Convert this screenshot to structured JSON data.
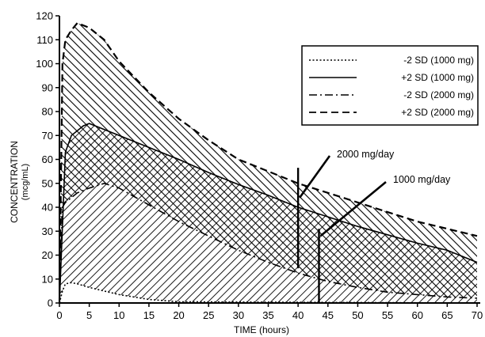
{
  "chart_data": {
    "type": "area",
    "xlabel": "TIME (hours)",
    "ylabel": "CONCENTRATION",
    "ylabel_unit": "(mcg/mL)",
    "xlim": [
      0,
      70
    ],
    "ylim": [
      0,
      120
    ],
    "xticks": [
      0,
      5,
      10,
      15,
      20,
      25,
      30,
      35,
      40,
      45,
      50,
      55,
      60,
      65,
      70
    ],
    "yticks": [
      0,
      10,
      20,
      30,
      40,
      50,
      60,
      70,
      80,
      90,
      100,
      110,
      120
    ],
    "grid": false,
    "legend_position": "top-right",
    "legend": [
      {
        "label": "-2 SD (1000 mg)",
        "style": "dotted"
      },
      {
        "label": "+2 SD (1000 mg)",
        "style": "solid"
      },
      {
        "label": "-2 SD (2000 mg)",
        "style": "dash-dot"
      },
      {
        "label": "+2 SD (2000 mg)",
        "style": "dashed"
      }
    ],
    "series": [
      {
        "name": "-2 SD (1000 mg)",
        "style": "dotted",
        "x": [
          0,
          0.5,
          1,
          2,
          3,
          5,
          7.5,
          10,
          15,
          20,
          70
        ],
        "values": [
          0,
          5,
          8,
          8.5,
          8,
          6.5,
          5,
          3.5,
          1.5,
          0.5,
          0
        ]
      },
      {
        "name": "+2 SD (1000 mg)",
        "style": "solid",
        "x": [
          0,
          1,
          2,
          4,
          5,
          6,
          10,
          15,
          20,
          25,
          30,
          35,
          40,
          45,
          50,
          55,
          60,
          65,
          70
        ],
        "values": [
          0,
          63,
          70,
          74,
          75,
          74,
          70,
          65,
          60,
          54.5,
          49.5,
          45,
          40,
          36,
          32,
          28.5,
          25,
          22,
          17
        ]
      },
      {
        "name": "-2 SD (2000 mg)",
        "style": "dash-dot",
        "x": [
          0,
          0.5,
          1,
          3,
          5,
          7.5,
          10,
          15,
          20,
          25,
          30,
          35,
          40,
          45,
          50,
          55,
          60,
          65,
          70
        ],
        "values": [
          0,
          40,
          42,
          46,
          48,
          50,
          48,
          41,
          34,
          28,
          22,
          17,
          12.5,
          9,
          6.5,
          4.5,
          3.5,
          2.5,
          2
        ]
      },
      {
        "name": "+2 SD (2000 mg)",
        "style": "dashed",
        "x": [
          0,
          0.5,
          1,
          2,
          3,
          5,
          7.5,
          10,
          15,
          20,
          25,
          30,
          35,
          40,
          45,
          50,
          55,
          60,
          65,
          70
        ],
        "values": [
          0,
          100,
          110,
          114,
          117,
          115,
          110,
          101,
          88,
          77,
          68,
          60,
          55,
          50,
          46,
          42,
          38,
          34,
          31,
          28
        ]
      }
    ],
    "annotations": [
      {
        "text": "2000 mg/day",
        "marker_x": 40
      },
      {
        "text": "1000 mg/day",
        "marker_x": 43.5
      }
    ]
  }
}
